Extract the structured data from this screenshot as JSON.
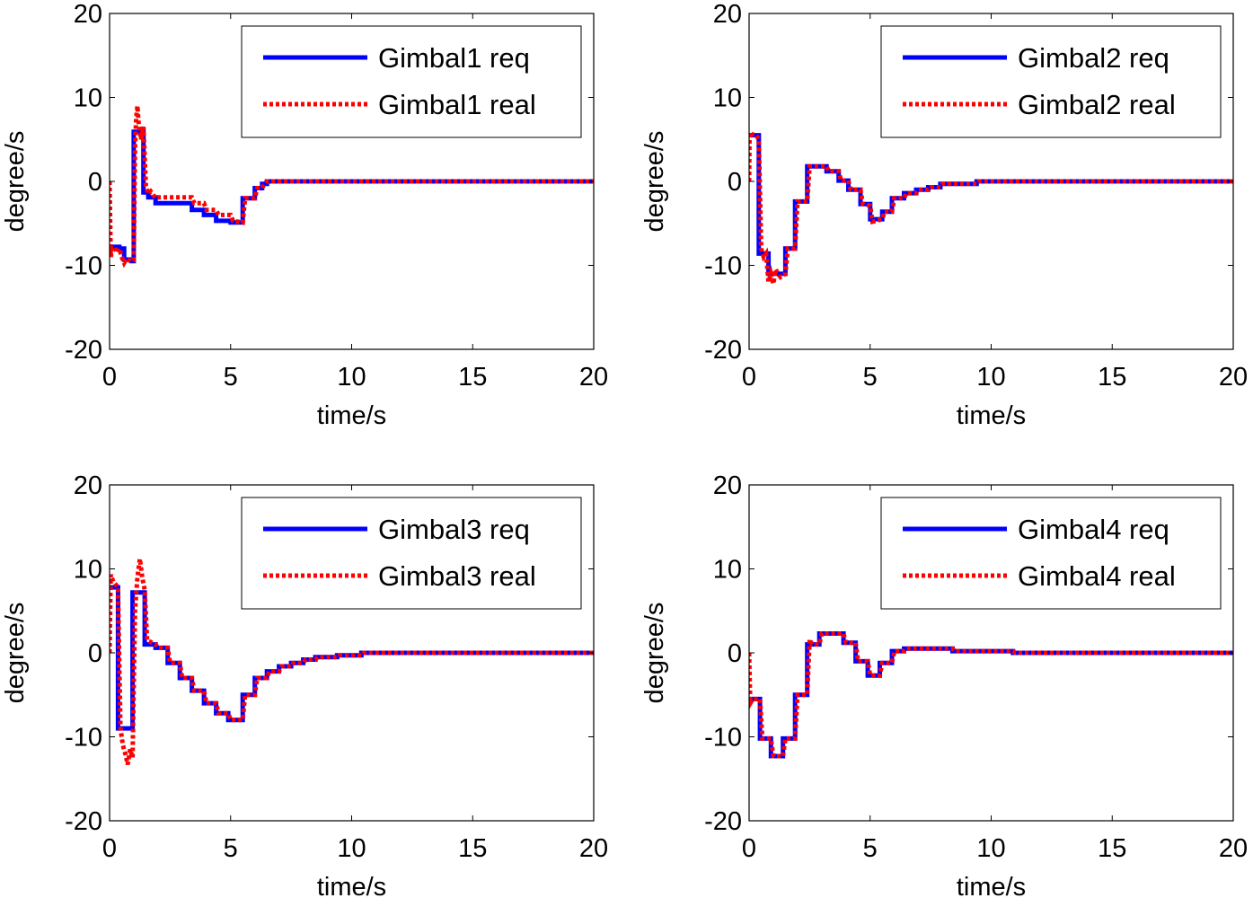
{
  "colors": {
    "req": "#0000ff",
    "real": "#ff0000",
    "axis": "#000000",
    "background": "#ffffff"
  },
  "chart_data": [
    {
      "type": "line",
      "xlabel": "time/s",
      "ylabel": "degree/s",
      "xlim": [
        0,
        20
      ],
      "ylim": [
        -20,
        20
      ],
      "xticks": [
        "0",
        "5",
        "10",
        "15",
        "20"
      ],
      "yticks": [
        "20",
        "10",
        "0",
        "-10",
        "-20"
      ],
      "grid": false,
      "legend_position": "top-right",
      "series": [
        {
          "name": "Gimbal1 req",
          "style": "solid",
          "color": "#0000ff",
          "x": [
            0,
            0.4,
            0.4,
            0.6,
            0.6,
            0.9,
            0.9,
            1.0,
            1.0,
            1.4,
            1.4,
            1.6,
            1.6,
            1.9,
            1.9,
            3.4,
            3.4,
            3.9,
            3.9,
            4.4,
            4.4,
            5.0,
            5.0,
            5.5,
            5.5,
            5.6,
            5.6,
            6.0,
            6.0,
            6.3,
            6.3,
            6.5,
            6.5,
            20
          ],
          "y": [
            -7.8,
            -7.8,
            -8.0,
            -8.0,
            -9.3,
            -9.3,
            -9.5,
            -9.5,
            5.9,
            5.9,
            -1.3,
            -1.3,
            -1.9,
            -1.9,
            -2.6,
            -2.6,
            -3.4,
            -3.4,
            -4.0,
            -4.0,
            -4.7,
            -4.7,
            -4.9,
            -4.9,
            -2.0,
            -2.0,
            -2.0,
            -2.0,
            -0.8,
            -0.8,
            -0.3,
            -0.3,
            0,
            0
          ]
        },
        {
          "name": "Gimbal1 real",
          "style": "dotted",
          "color": "#ff0000",
          "x": [
            0,
            0.05,
            0.1,
            0.2,
            0.3,
            0.4,
            0.5,
            0.6,
            0.7,
            0.8,
            0.9,
            1.0,
            1.05,
            1.1,
            1.15,
            1.2,
            1.3,
            1.4,
            1.5,
            1.6,
            1.7,
            1.9,
            2.0,
            3.4,
            3.5,
            3.9,
            4.0,
            4.4,
            4.5,
            5.0,
            5.1,
            5.5,
            5.6,
            6.0,
            6.1,
            6.3,
            6.4,
            6.5,
            20
          ],
          "y": [
            0,
            -9.0,
            -8.0,
            -7.8,
            -8.5,
            -8.0,
            -9.0,
            -9.7,
            -9.2,
            -9.4,
            -9.5,
            -9.4,
            4.0,
            7.5,
            9.0,
            7.0,
            5.0,
            6.5,
            -0.5,
            -1.5,
            -1.2,
            -2.0,
            -1.9,
            -1.9,
            -2.6,
            -2.6,
            -3.4,
            -3.4,
            -4.0,
            -4.0,
            -4.7,
            -4.9,
            -2.0,
            -2.0,
            -0.8,
            -0.8,
            -0.3,
            0,
            0
          ]
        }
      ],
      "legend": {
        "req": "Gimbal1 req",
        "real": "Gimbal1 real"
      }
    },
    {
      "type": "line",
      "xlabel": "time/s",
      "ylabel": "degree/s",
      "xlim": [
        0,
        20
      ],
      "ylim": [
        -20,
        20
      ],
      "xticks": [
        "0",
        "5",
        "10",
        "15",
        "20"
      ],
      "yticks": [
        "20",
        "10",
        "0",
        "-10",
        "-20"
      ],
      "grid": false,
      "legend_position": "top-right",
      "series": [
        {
          "name": "Gimbal2 req",
          "style": "solid",
          "color": "#0000ff",
          "x": [
            0,
            0.4,
            0.4,
            0.8,
            0.8,
            1.3,
            1.3,
            1.5,
            1.5,
            1.9,
            1.9,
            2.4,
            2.4,
            3.2,
            3.2,
            3.7,
            3.7,
            4.1,
            4.1,
            4.6,
            4.6,
            5.0,
            5.0,
            5.5,
            5.5,
            5.9,
            5.9,
            6.4,
            6.4,
            6.9,
            6.9,
            7.4,
            7.4,
            7.9,
            7.9,
            8.4,
            8.4,
            9.4,
            9.4,
            20
          ],
          "y": [
            5.5,
            5.5,
            -8.6,
            -8.6,
            -11.0,
            -11.0,
            -11.0,
            -11.0,
            -8.0,
            -8.0,
            -2.4,
            -2.4,
            1.8,
            1.8,
            1.2,
            1.2,
            0.1,
            0.1,
            -1.0,
            -1.0,
            -2.7,
            -2.7,
            -4.5,
            -4.5,
            -3.6,
            -3.6,
            -2.0,
            -2.0,
            -1.4,
            -1.4,
            -1.0,
            -1.0,
            -0.7,
            -0.7,
            -0.3,
            -0.3,
            -0.3,
            -0.3,
            0,
            0
          ]
        },
        {
          "name": "Gimbal2 real",
          "style": "dotted",
          "color": "#ff0000",
          "x": [
            0,
            0.02,
            0.1,
            0.3,
            0.4,
            0.5,
            0.6,
            0.7,
            0.8,
            0.9,
            1.0,
            1.1,
            1.2,
            1.3,
            1.5,
            1.6,
            1.9,
            2.0,
            2.4,
            2.5,
            3.2,
            3.3,
            3.7,
            3.8,
            4.1,
            4.2,
            4.6,
            4.7,
            5.0,
            5.1,
            5.5,
            5.6,
            5.9,
            6.0,
            6.4,
            6.5,
            6.9,
            7.0,
            7.4,
            7.5,
            7.9,
            8.0,
            8.4,
            9.4,
            9.5,
            20
          ],
          "y": [
            0,
            5.8,
            5.6,
            5.5,
            5.0,
            -8.0,
            -9.0,
            -8.6,
            -12.0,
            -11.0,
            -12.2,
            -10.5,
            -11.0,
            -11.4,
            -11.0,
            -8.0,
            -8.0,
            -2.4,
            -2.4,
            1.8,
            1.8,
            1.2,
            1.2,
            0.1,
            0.1,
            -1.0,
            -1.0,
            -2.7,
            -2.9,
            -4.8,
            -4.5,
            -3.6,
            -3.6,
            -2.0,
            -2.0,
            -1.4,
            -1.4,
            -1.0,
            -1.0,
            -0.7,
            -0.7,
            -0.3,
            -0.3,
            -0.3,
            0,
            0
          ]
        }
      ],
      "legend": {
        "req": "Gimbal2 req",
        "real": "Gimbal2 real"
      }
    },
    {
      "type": "line",
      "xlabel": "time/s",
      "ylabel": "degree/s",
      "xlim": [
        0,
        20
      ],
      "ylim": [
        -20,
        20
      ],
      "xticks": [
        "0",
        "5",
        "10",
        "15",
        "20"
      ],
      "yticks": [
        "20",
        "10",
        "0",
        "-10",
        "-20"
      ],
      "grid": false,
      "legend_position": "top-right",
      "series": [
        {
          "name": "Gimbal3 req",
          "style": "solid",
          "color": "#0000ff",
          "x": [
            0,
            0.35,
            0.35,
            0.95,
            0.95,
            1.45,
            1.45,
            1.9,
            1.9,
            2.4,
            2.4,
            2.9,
            2.9,
            3.4,
            3.4,
            3.9,
            3.9,
            4.4,
            4.4,
            4.9,
            4.9,
            5.5,
            5.5,
            6.0,
            6.0,
            6.5,
            6.5,
            7.0,
            7.0,
            7.5,
            7.5,
            8.0,
            8.0,
            8.5,
            8.5,
            9.4,
            9.4,
            10.4,
            10.4,
            20
          ],
          "y": [
            7.8,
            7.8,
            -9.0,
            -9.0,
            7.2,
            7.2,
            1.0,
            1.0,
            0.6,
            0.6,
            -1.2,
            -1.2,
            -3.0,
            -3.0,
            -4.5,
            -4.5,
            -6.0,
            -6.0,
            -7.2,
            -7.2,
            -8.0,
            -8.0,
            -5.0,
            -5.0,
            -3.0,
            -3.0,
            -2.2,
            -2.2,
            -1.6,
            -1.6,
            -1.2,
            -1.2,
            -0.8,
            -0.8,
            -0.5,
            -0.5,
            -0.3,
            -0.3,
            0,
            0
          ]
        },
        {
          "name": "Gimbal3 real",
          "style": "dotted",
          "color": "#ff0000",
          "x": [
            0,
            0.05,
            0.15,
            0.35,
            0.45,
            0.55,
            0.65,
            0.75,
            0.85,
            0.95,
            1.05,
            1.15,
            1.25,
            1.35,
            1.45,
            1.55,
            1.9,
            2.0,
            2.4,
            2.5,
            2.9,
            3.0,
            3.4,
            3.5,
            3.9,
            4.0,
            4.4,
            4.5,
            4.9,
            5.0,
            5.5,
            5.6,
            6.0,
            6.1,
            6.5,
            6.6,
            7.0,
            7.1,
            7.5,
            7.6,
            8.0,
            8.1,
            8.5,
            8.6,
            9.4,
            9.5,
            10.4,
            10.5,
            20
          ],
          "y": [
            0,
            9.3,
            8.5,
            7.8,
            -9.0,
            -11.0,
            -12.0,
            -13.3,
            -11.5,
            -12.5,
            5.0,
            9.0,
            11.2,
            9.0,
            7.5,
            1.5,
            1.0,
            0.6,
            0.6,
            -1.2,
            -1.2,
            -3.0,
            -3.0,
            -4.5,
            -4.5,
            -6.0,
            -6.0,
            -7.2,
            -7.2,
            -8.0,
            -8.0,
            -5.0,
            -5.0,
            -3.0,
            -3.0,
            -2.2,
            -2.2,
            -1.6,
            -1.6,
            -1.2,
            -1.2,
            -0.8,
            -0.8,
            -0.5,
            -0.5,
            -0.3,
            -0.3,
            0,
            0
          ]
        }
      ],
      "legend": {
        "req": "Gimbal3 req",
        "real": "Gimbal3 real"
      }
    },
    {
      "type": "line",
      "xlabel": "time/s",
      "ylabel": "degree/s",
      "xlim": [
        0,
        20
      ],
      "ylim": [
        -20,
        20
      ],
      "xticks": [
        "0",
        "5",
        "10",
        "15",
        "20"
      ],
      "yticks": [
        "20",
        "10",
        "0",
        "-10",
        "-20"
      ],
      "grid": false,
      "legend_position": "top-right",
      "series": [
        {
          "name": "Gimbal4 req",
          "style": "solid",
          "color": "#0000ff",
          "x": [
            0,
            0.45,
            0.45,
            0.9,
            0.9,
            1.4,
            1.4,
            1.9,
            1.9,
            2.4,
            2.4,
            2.9,
            2.9,
            3.4,
            3.4,
            3.9,
            3.9,
            4.4,
            4.4,
            4.9,
            4.9,
            5.4,
            5.4,
            5.9,
            5.9,
            6.4,
            6.4,
            8.4,
            8.4,
            10.9,
            10.9,
            20
          ],
          "y": [
            -5.5,
            -5.5,
            -10.2,
            -10.2,
            -12.3,
            -12.3,
            -10.2,
            -10.2,
            -5.0,
            -5.0,
            1.0,
            1.0,
            2.3,
            2.3,
            2.3,
            2.3,
            1.2,
            1.2,
            -1.0,
            -1.0,
            -2.7,
            -2.7,
            -1.2,
            -1.2,
            0.2,
            0.2,
            0.5,
            0.5,
            0.2,
            0.2,
            0,
            0
          ]
        },
        {
          "name": "Gimbal4 real",
          "style": "dotted",
          "color": "#ff0000",
          "x": [
            0,
            0.05,
            0.15,
            0.45,
            0.55,
            0.9,
            1.0,
            1.4,
            1.5,
            1.9,
            2.0,
            2.4,
            2.5,
            2.6,
            2.9,
            3.0,
            3.4,
            3.9,
            4.0,
            4.4,
            4.5,
            4.9,
            5.0,
            5.4,
            5.5,
            5.9,
            6.0,
            6.4,
            6.5,
            8.4,
            8.5,
            10.9,
            11.0,
            20
          ],
          "y": [
            0,
            -6.0,
            -5.5,
            -5.5,
            -10.2,
            -10.2,
            -12.3,
            -12.3,
            -10.2,
            -10.2,
            -5.0,
            -5.0,
            1.6,
            1.0,
            1.0,
            2.3,
            2.3,
            2.3,
            1.2,
            1.2,
            -1.0,
            -1.0,
            -2.7,
            -2.7,
            -1.2,
            -1.2,
            0.2,
            0.2,
            0.5,
            0.5,
            0.2,
            0.2,
            0,
            0
          ]
        }
      ],
      "legend": {
        "req": "Gimbal4 req",
        "real": "Gimbal4 real"
      }
    }
  ]
}
